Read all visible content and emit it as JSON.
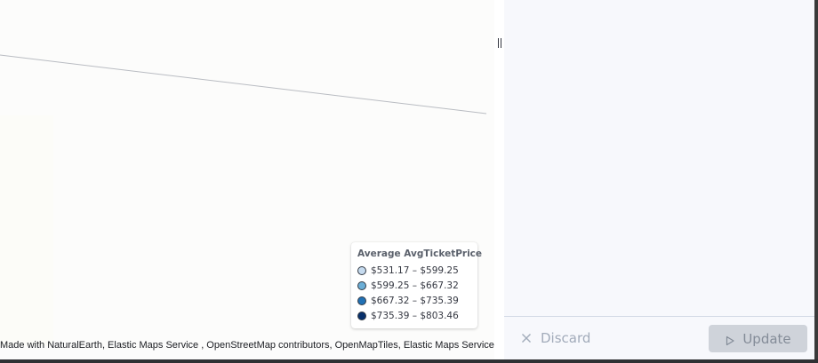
{
  "map": {
    "legend": {
      "title": "Average AvgTicketPrice",
      "items": [
        {
          "label": "$531.17 – $599.25",
          "color": "#c6dbef"
        },
        {
          "label": "$599.25 – $667.32",
          "color": "#6baed6"
        },
        {
          "label": "$667.32 – $735.39",
          "color": "#2171b5"
        },
        {
          "label": "$735.39 – $803.46",
          "color": "#08306b"
        }
      ]
    },
    "attribution": "Made with NaturalEarth, Elastic Maps Service , OpenStreetMap contributors, OpenMapTiles, Elastic Maps Service",
    "resize_handle_icon": "drag-handle-icon"
  },
  "panel": {
    "footer": {
      "discard_label": "Discard",
      "discard_icon": "close-icon",
      "update_label": "Update",
      "update_icon": "play-icon"
    }
  },
  "colors": {
    "panel_background": "#f7f8fc",
    "update_button_disabled": "#cfd3da",
    "map_background": "#fcfcfb"
  }
}
